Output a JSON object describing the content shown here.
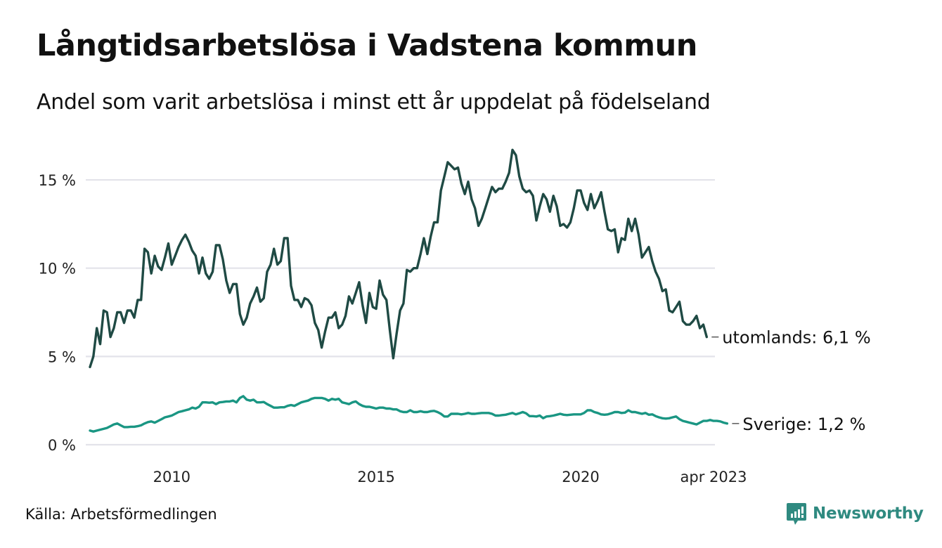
{
  "header": {
    "title": "Långtidsarbetslösa i Vadstena kommun",
    "subtitle": "Andel som varit arbetslösa i minst ett år uppdelat på födelseland"
  },
  "footer": {
    "source": "Källa: Arbetsförmedlingen",
    "brand": "Newsworthy",
    "brand_icon": "chart-speech-bubble-icon"
  },
  "colors": {
    "utomlands": "#1f4a44",
    "sverige": "#1a9683",
    "grid": "#e3e3ea",
    "brand": "#2f8a80"
  },
  "chart_data": {
    "type": "line",
    "title": "Långtidsarbetslösa i Vadstena kommun",
    "subtitle": "Andel som varit arbetslösa i minst ett år uppdelat på födelseland",
    "xlabel": "",
    "ylabel": "",
    "x_start": "2008-01",
    "x_end": "2023-04",
    "frequency": "monthly",
    "ylim": [
      0,
      17
    ],
    "yticks": [
      0,
      5,
      10,
      15
    ],
    "ytick_labels": [
      "0 %",
      "5 %",
      "10 %",
      "15 %"
    ],
    "xticks": [
      {
        "label": "2010",
        "month_index": 24
      },
      {
        "label": "2015",
        "month_index": 84
      },
      {
        "label": "2020",
        "month_index": 144
      },
      {
        "label": "apr 2023",
        "month_index": 183
      }
    ],
    "grid": "horizontal",
    "legend": "direct labels at line ends (right)",
    "series": [
      {
        "name": "utomlands",
        "end_label": "utomlands: 6,1 %",
        "values": [
          4.4,
          5.0,
          6.6,
          5.7,
          7.6,
          7.5,
          6.1,
          6.6,
          7.5,
          7.5,
          6.9,
          7.6,
          7.6,
          7.2,
          8.2,
          8.2,
          11.1,
          10.9,
          9.7,
          10.7,
          10.1,
          9.9,
          10.6,
          11.4,
          10.2,
          10.7,
          11.2,
          11.6,
          11.9,
          11.5,
          11.0,
          10.7,
          9.7,
          10.6,
          9.7,
          9.4,
          9.8,
          11.3,
          11.3,
          10.5,
          9.3,
          8.6,
          9.1,
          9.1,
          7.4,
          6.8,
          7.2,
          8.0,
          8.4,
          8.9,
          8.1,
          8.3,
          9.8,
          10.2,
          11.1,
          10.2,
          10.4,
          11.7,
          11.7,
          9.0,
          8.2,
          8.2,
          7.8,
          8.3,
          8.2,
          7.9,
          6.9,
          6.5,
          5.5,
          6.4,
          7.2,
          7.2,
          7.5,
          6.6,
          6.8,
          7.3,
          8.4,
          8.0,
          8.6,
          9.2,
          7.9,
          6.9,
          8.6,
          7.8,
          7.7,
          9.3,
          8.5,
          8.2,
          6.5,
          4.9,
          6.3,
          7.6,
          8.0,
          9.9,
          9.8,
          10.0,
          10.0,
          10.8,
          11.7,
          10.8,
          11.8,
          12.6,
          12.6,
          14.4,
          15.2,
          16.0,
          15.8,
          15.6,
          15.7,
          14.8,
          14.2,
          14.9,
          13.9,
          13.4,
          12.4,
          12.8,
          13.4,
          14.0,
          14.6,
          14.3,
          14.5,
          14.5,
          14.9,
          15.4,
          16.7,
          16.4,
          15.2,
          14.5,
          14.3,
          14.4,
          14.1,
          12.7,
          13.5,
          14.2,
          13.9,
          13.2,
          14.1,
          13.5,
          12.4,
          12.5,
          12.3,
          12.6,
          13.4,
          14.4,
          14.4,
          13.7,
          13.3,
          14.2,
          13.4,
          13.8,
          14.3,
          13.2,
          12.2,
          12.1,
          12.2,
          10.9,
          11.7,
          11.6,
          12.8,
          12.1,
          12.8,
          11.9,
          10.6,
          10.9,
          11.2,
          10.4,
          9.8,
          9.4,
          8.7,
          8.8,
          7.6,
          7.5,
          7.8,
          8.1,
          7.0,
          6.8,
          6.8,
          7.0,
          7.3,
          6.6,
          6.8,
          6.1
        ]
      },
      {
        "name": "Sverige",
        "end_label": "Sverige: 1,2 %",
        "values": [
          0.8,
          0.75,
          0.8,
          0.85,
          0.9,
          0.95,
          1.05,
          1.15,
          1.2,
          1.1,
          1.0,
          1.0,
          1.02,
          1.02,
          1.05,
          1.1,
          1.2,
          1.28,
          1.32,
          1.25,
          1.35,
          1.45,
          1.55,
          1.6,
          1.65,
          1.75,
          1.85,
          1.9,
          1.95,
          2.0,
          2.1,
          2.05,
          2.15,
          2.4,
          2.4,
          2.38,
          2.4,
          2.3,
          2.4,
          2.42,
          2.45,
          2.45,
          2.5,
          2.4,
          2.65,
          2.75,
          2.55,
          2.5,
          2.55,
          2.4,
          2.4,
          2.42,
          2.3,
          2.2,
          2.1,
          2.1,
          2.12,
          2.12,
          2.2,
          2.25,
          2.2,
          2.3,
          2.4,
          2.45,
          2.5,
          2.6,
          2.65,
          2.65,
          2.65,
          2.6,
          2.5,
          2.6,
          2.55,
          2.6,
          2.4,
          2.35,
          2.3,
          2.4,
          2.45,
          2.3,
          2.2,
          2.15,
          2.15,
          2.1,
          2.05,
          2.1,
          2.1,
          2.05,
          2.05,
          2.0,
          2.0,
          1.9,
          1.85,
          1.85,
          1.95,
          1.85,
          1.85,
          1.9,
          1.85,
          1.85,
          1.9,
          1.92,
          1.85,
          1.75,
          1.6,
          1.6,
          1.75,
          1.75,
          1.75,
          1.72,
          1.75,
          1.8,
          1.75,
          1.75,
          1.78,
          1.8,
          1.8,
          1.8,
          1.75,
          1.65,
          1.65,
          1.68,
          1.7,
          1.75,
          1.8,
          1.72,
          1.78,
          1.85,
          1.78,
          1.62,
          1.62,
          1.6,
          1.65,
          1.5,
          1.6,
          1.62,
          1.65,
          1.7,
          1.75,
          1.7,
          1.68,
          1.7,
          1.72,
          1.72,
          1.72,
          1.8,
          1.95,
          1.95,
          1.85,
          1.8,
          1.72,
          1.7,
          1.72,
          1.78,
          1.85,
          1.85,
          1.8,
          1.82,
          1.95,
          1.85,
          1.85,
          1.8,
          1.75,
          1.8,
          1.7,
          1.72,
          1.62,
          1.55,
          1.5,
          1.48,
          1.5,
          1.55,
          1.6,
          1.45,
          1.35,
          1.3,
          1.25,
          1.2,
          1.15,
          1.25,
          1.35,
          1.35,
          1.4,
          1.35,
          1.35,
          1.32,
          1.25,
          1.2
        ]
      }
    ]
  }
}
